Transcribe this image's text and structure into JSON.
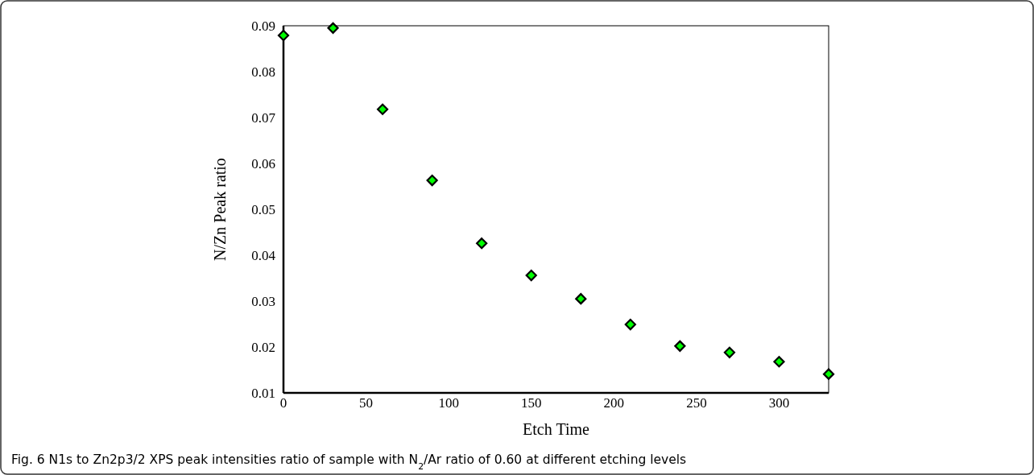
{
  "chart_data": {
    "type": "scatter",
    "xlabel": "Etch Time",
    "ylabel": "N/Zn Peak ratio",
    "annotations": [
      "Fig. 6 N1s to Zn2p3/2 XPS peak intensities ratio of sample with N$_{2}$/Ar ratio of 0.60 at different etching levels"
    ],
    "x": [
      0,
      30,
      60,
      90,
      120,
      150,
      180,
      210,
      240,
      270,
      300,
      330
    ],
    "series": [
      {
        "color": "#00ff00",
        "values": [
          0.0879,
          0.0895,
          0.0718,
          0.0563,
          0.0426,
          0.0356,
          0.0305,
          0.0249,
          0.0202,
          0.0188,
          0.0168,
          0.0141
        ]
      }
    ],
    "xlim": [
      0,
      330
    ],
    "xticks": [
      0,
      50,
      100,
      150,
      200,
      250,
      300
    ],
    "ylim": [
      0.01,
      0.09
    ],
    "yticks": [
      0.01,
      0.02,
      0.03,
      0.04,
      0.05,
      0.06,
      0.07,
      0.08,
      0.09
    ],
    "marker": "diamond",
    "grid": false
  }
}
